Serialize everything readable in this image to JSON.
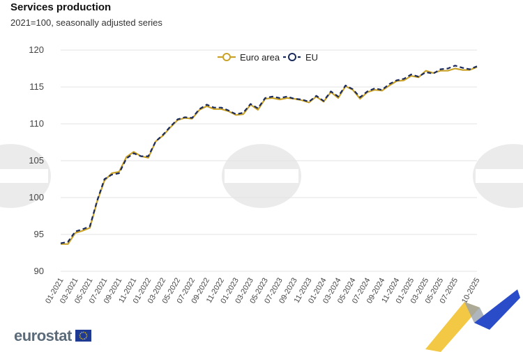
{
  "header": {
    "title": "Services production",
    "subtitle": "2021=100, seasonally adjusted series"
  },
  "logo": {
    "text": "eurostat"
  },
  "colors": {
    "euro_area": "#c9a227",
    "eu": "#1b2a5c",
    "grid": "#e3e3e3"
  },
  "chart_data": {
    "type": "line",
    "title": "Services production",
    "subtitle": "2021=100, seasonally adjusted series",
    "ylim": [
      90,
      120
    ],
    "yticks": [
      90,
      95,
      100,
      105,
      110,
      115,
      120
    ],
    "xlabels": [
      "01-2021",
      "03-2021",
      "05-2021",
      "07-2021",
      "09-2021",
      "11-2021",
      "01-2022",
      "03-2022",
      "05-2022",
      "07-2022",
      "09-2022",
      "11-2022",
      "01-2023",
      "03-2023",
      "05-2023",
      "07-2023",
      "09-2023",
      "11-2023",
      "01-2024",
      "03-2024",
      "05-2024",
      "07-2024",
      "09-2024",
      "11-2024",
      "01-2025",
      "03-2025",
      "05-2025",
      "07-2025",
      "10-2025"
    ],
    "legend_position": "top",
    "grid": true,
    "x": [
      "01-2021",
      "02-2021",
      "03-2021",
      "04-2021",
      "05-2021",
      "06-2021",
      "07-2021",
      "08-2021",
      "09-2021",
      "10-2021",
      "11-2021",
      "12-2021",
      "01-2022",
      "02-2022",
      "03-2022",
      "04-2022",
      "05-2022",
      "06-2022",
      "07-2022",
      "08-2022",
      "09-2022",
      "10-2022",
      "11-2022",
      "12-2022",
      "01-2023",
      "02-2023",
      "03-2023",
      "04-2023",
      "05-2023",
      "06-2023",
      "07-2023",
      "08-2023",
      "09-2023",
      "10-2023",
      "11-2023",
      "12-2023",
      "01-2024",
      "02-2024",
      "03-2024",
      "04-2024",
      "05-2024",
      "06-2024",
      "07-2024",
      "08-2024",
      "09-2024",
      "10-2024",
      "11-2024",
      "12-2024",
      "01-2025",
      "02-2025",
      "03-2025",
      "04-2025",
      "05-2025",
      "06-2025",
      "07-2025",
      "08-2025",
      "09-2025",
      "10-2025"
    ],
    "series": [
      {
        "name": "Euro area",
        "values": [
          93.7,
          93.7,
          95.2,
          95.5,
          95.9,
          99.5,
          102.3,
          103.3,
          103.5,
          105.5,
          106.2,
          105.6,
          105.4,
          107.6,
          108.4,
          109.5,
          110.5,
          110.8,
          110.7,
          111.9,
          112.4,
          112.0,
          112.0,
          111.7,
          111.2,
          111.3,
          112.6,
          111.9,
          113.4,
          113.5,
          113.3,
          113.5,
          113.4,
          113.2,
          112.9,
          113.7,
          113.0,
          114.3,
          113.5,
          115.1,
          114.6,
          113.4,
          114.3,
          114.6,
          114.5,
          115.2,
          115.8,
          115.9,
          116.5,
          116.3,
          117.2,
          116.9,
          117.2,
          117.2,
          117.5,
          117.3,
          117.3,
          117.7
        ]
      },
      {
        "name": "EU",
        "values": [
          93.8,
          94.0,
          95.4,
          95.7,
          96.1,
          99.6,
          102.5,
          103.1,
          103.3,
          105.3,
          106.0,
          105.6,
          105.6,
          107.6,
          108.5,
          109.6,
          110.6,
          110.9,
          110.8,
          112.0,
          112.6,
          112.2,
          112.2,
          111.8,
          111.3,
          111.5,
          112.7,
          112.1,
          113.5,
          113.7,
          113.5,
          113.7,
          113.4,
          113.3,
          113.0,
          113.8,
          113.1,
          114.4,
          113.7,
          115.2,
          114.7,
          113.6,
          114.4,
          114.8,
          114.6,
          115.4,
          115.9,
          116.1,
          116.7,
          116.4,
          117.0,
          116.8,
          117.4,
          117.5,
          117.9,
          117.6,
          117.4,
          117.8
        ]
      }
    ]
  }
}
